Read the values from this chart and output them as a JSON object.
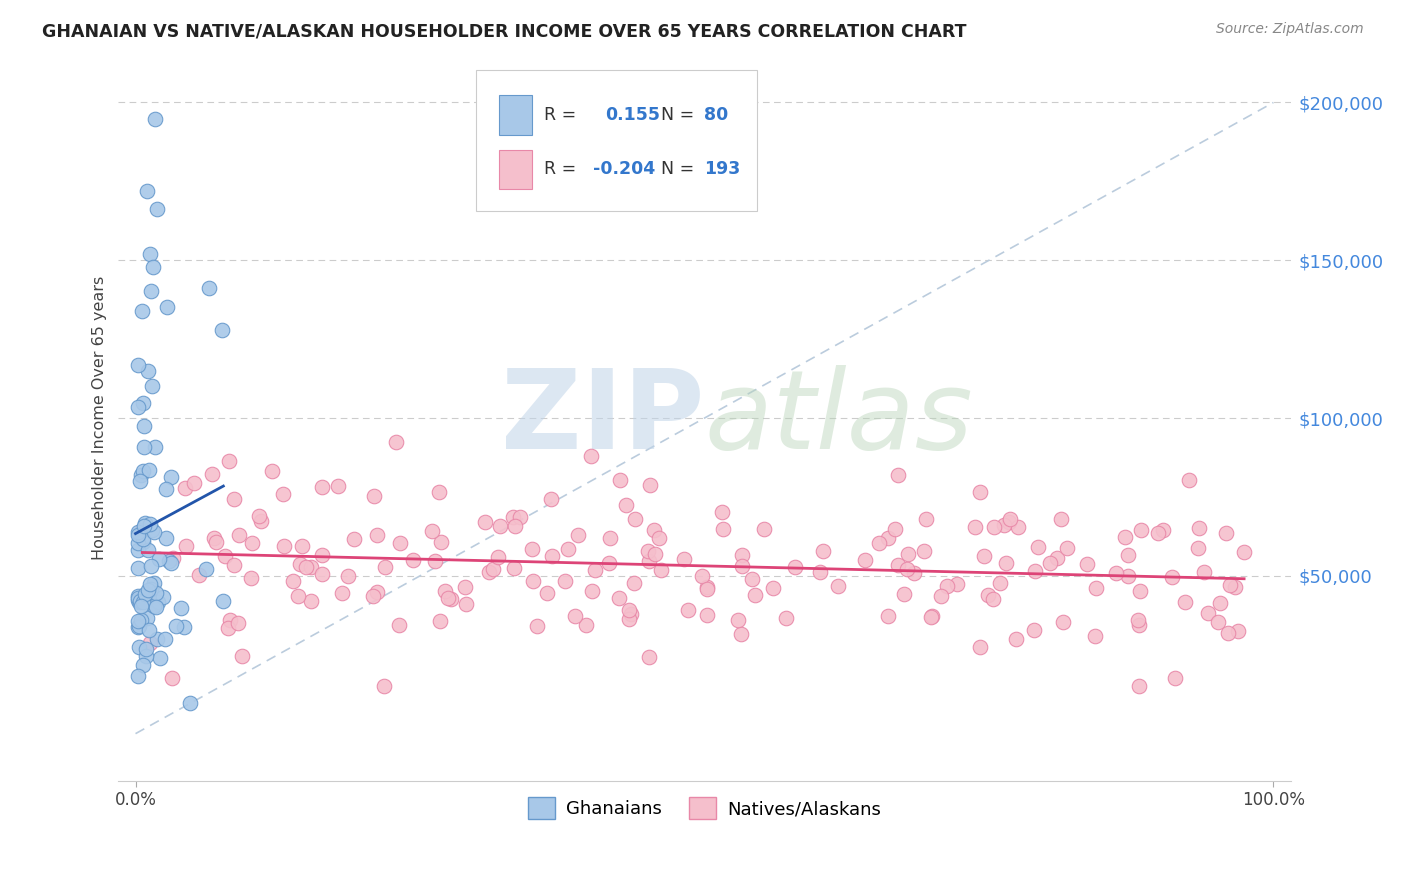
{
  "title": "GHANAIAN VS NATIVE/ALASKAN HOUSEHOLDER INCOME OVER 65 YEARS CORRELATION CHART",
  "source": "Source: ZipAtlas.com",
  "ylabel": "Householder Income Over 65 years",
  "watermark_zip": "ZIP",
  "watermark_atlas": "atlas",
  "ytick_vals": [
    50000,
    100000,
    150000,
    200000
  ],
  "ytick_labels": [
    "$50,000",
    "$100,000",
    "$150,000",
    "$200,000"
  ],
  "ylim": [
    -15000,
    215000
  ],
  "xlim": [
    -0.015,
    1.015
  ],
  "blue_scatter_color": "#a8c8e8",
  "blue_scatter_edge": "#6699cc",
  "pink_scatter_color": "#f5bfcc",
  "pink_scatter_edge": "#e888a8",
  "blue_line_color": "#2255aa",
  "pink_line_color": "#dd4477",
  "diagonal_color": "#bbccdd",
  "title_color": "#222222",
  "source_color": "#888888",
  "ytick_color": "#4488dd",
  "background_color": "#ffffff",
  "grid_color": "#cccccc",
  "legend_box_color": "#f0f4f8",
  "legend_edge_color": "#cccccc",
  "legend_text_color": "#333333",
  "legend_value_color": "#3377cc",
  "zip_color": "#c0d4e8",
  "atlas_color": "#b8d4b8"
}
